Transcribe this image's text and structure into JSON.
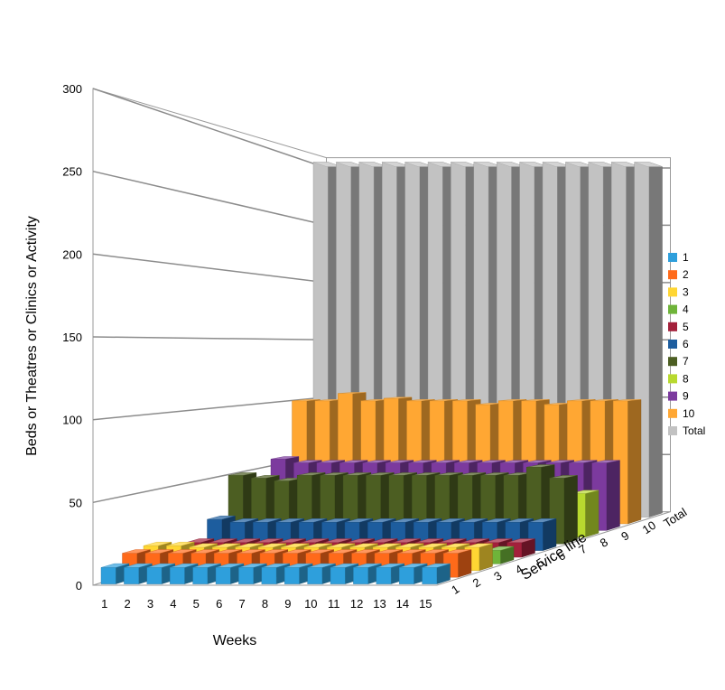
{
  "chart_data": {
    "type": "bar",
    "subtype": "3d-grouped",
    "title": "",
    "xlabel": "Weeks",
    "ylabel": "Beds or Theatres or Clinics or Activity",
    "zlabel": "Service line",
    "ylim": [
      0,
      300
    ],
    "yticks": [
      "0",
      "50",
      "100",
      "150",
      "200",
      "250",
      "300"
    ],
    "categories": [
      "1",
      "2",
      "3",
      "4",
      "5",
      "6",
      "7",
      "8",
      "9",
      "10",
      "11",
      "12",
      "13",
      "14",
      "15"
    ],
    "depth_labels": [
      "1",
      "2",
      "3",
      "4",
      "5",
      "6",
      "7",
      "8",
      "9",
      "10",
      "Total"
    ],
    "legend_position": "right",
    "grid": true,
    "series": [
      {
        "name": "1",
        "color": "#2e9fdc",
        "values": [
          10,
          10,
          10,
          10,
          10,
          10,
          10,
          10,
          10,
          10,
          10,
          10,
          10,
          10,
          10
        ]
      },
      {
        "name": "2",
        "color": "#ff6a1a",
        "values": [
          15,
          15,
          15,
          15,
          15,
          15,
          15,
          15,
          15,
          15,
          15,
          15,
          15,
          15,
          15
        ]
      },
      {
        "name": "3",
        "color": "#ffd633",
        "values": [
          16,
          16,
          15,
          15,
          15,
          15,
          15,
          15,
          15,
          15,
          15,
          15,
          15,
          15,
          15
        ]
      },
      {
        "name": "4",
        "color": "#6fb43a",
        "values": [
          9,
          9,
          9,
          9,
          9,
          9,
          9,
          9,
          9,
          9,
          9,
          9,
          9,
          9,
          9
        ]
      },
      {
        "name": "5",
        "color": "#a3203b",
        "values": [
          10,
          10,
          10,
          10,
          10,
          10,
          10,
          10,
          10,
          10,
          10,
          10,
          10,
          10,
          10
        ]
      },
      {
        "name": "6",
        "color": "#1d5d9e",
        "values": [
          22,
          20,
          20,
          20,
          20,
          20,
          20,
          20,
          20,
          20,
          20,
          20,
          20,
          20,
          20
        ]
      },
      {
        "name": "7",
        "color": "#4c5e22",
        "values": [
          50,
          48,
          46,
          50,
          50,
          50,
          50,
          50,
          50,
          50,
          50,
          50,
          50,
          56,
          48
        ]
      },
      {
        "name": "8",
        "color": "#b8d92f",
        "values": [
          33,
          33,
          33,
          33,
          33,
          33,
          33,
          33,
          33,
          33,
          33,
          33,
          33,
          33,
          33
        ]
      },
      {
        "name": "9",
        "color": "#7c3a9e",
        "values": [
          56,
          53,
          53,
          53,
          53,
          53,
          53,
          53,
          53,
          53,
          53,
          53,
          53,
          53,
          53
        ]
      },
      {
        "name": "10",
        "color": "#ffa733",
        "values": [
          100,
          100,
          106,
          100,
          102,
          100,
          100,
          100,
          97,
          100,
          100,
          97,
          100,
          100,
          100
        ]
      },
      {
        "name": "Total",
        "color": "#c2c2c2",
        "values": [
          300,
          300,
          300,
          300,
          300,
          300,
          300,
          300,
          300,
          300,
          300,
          300,
          300,
          300,
          300
        ]
      }
    ]
  }
}
